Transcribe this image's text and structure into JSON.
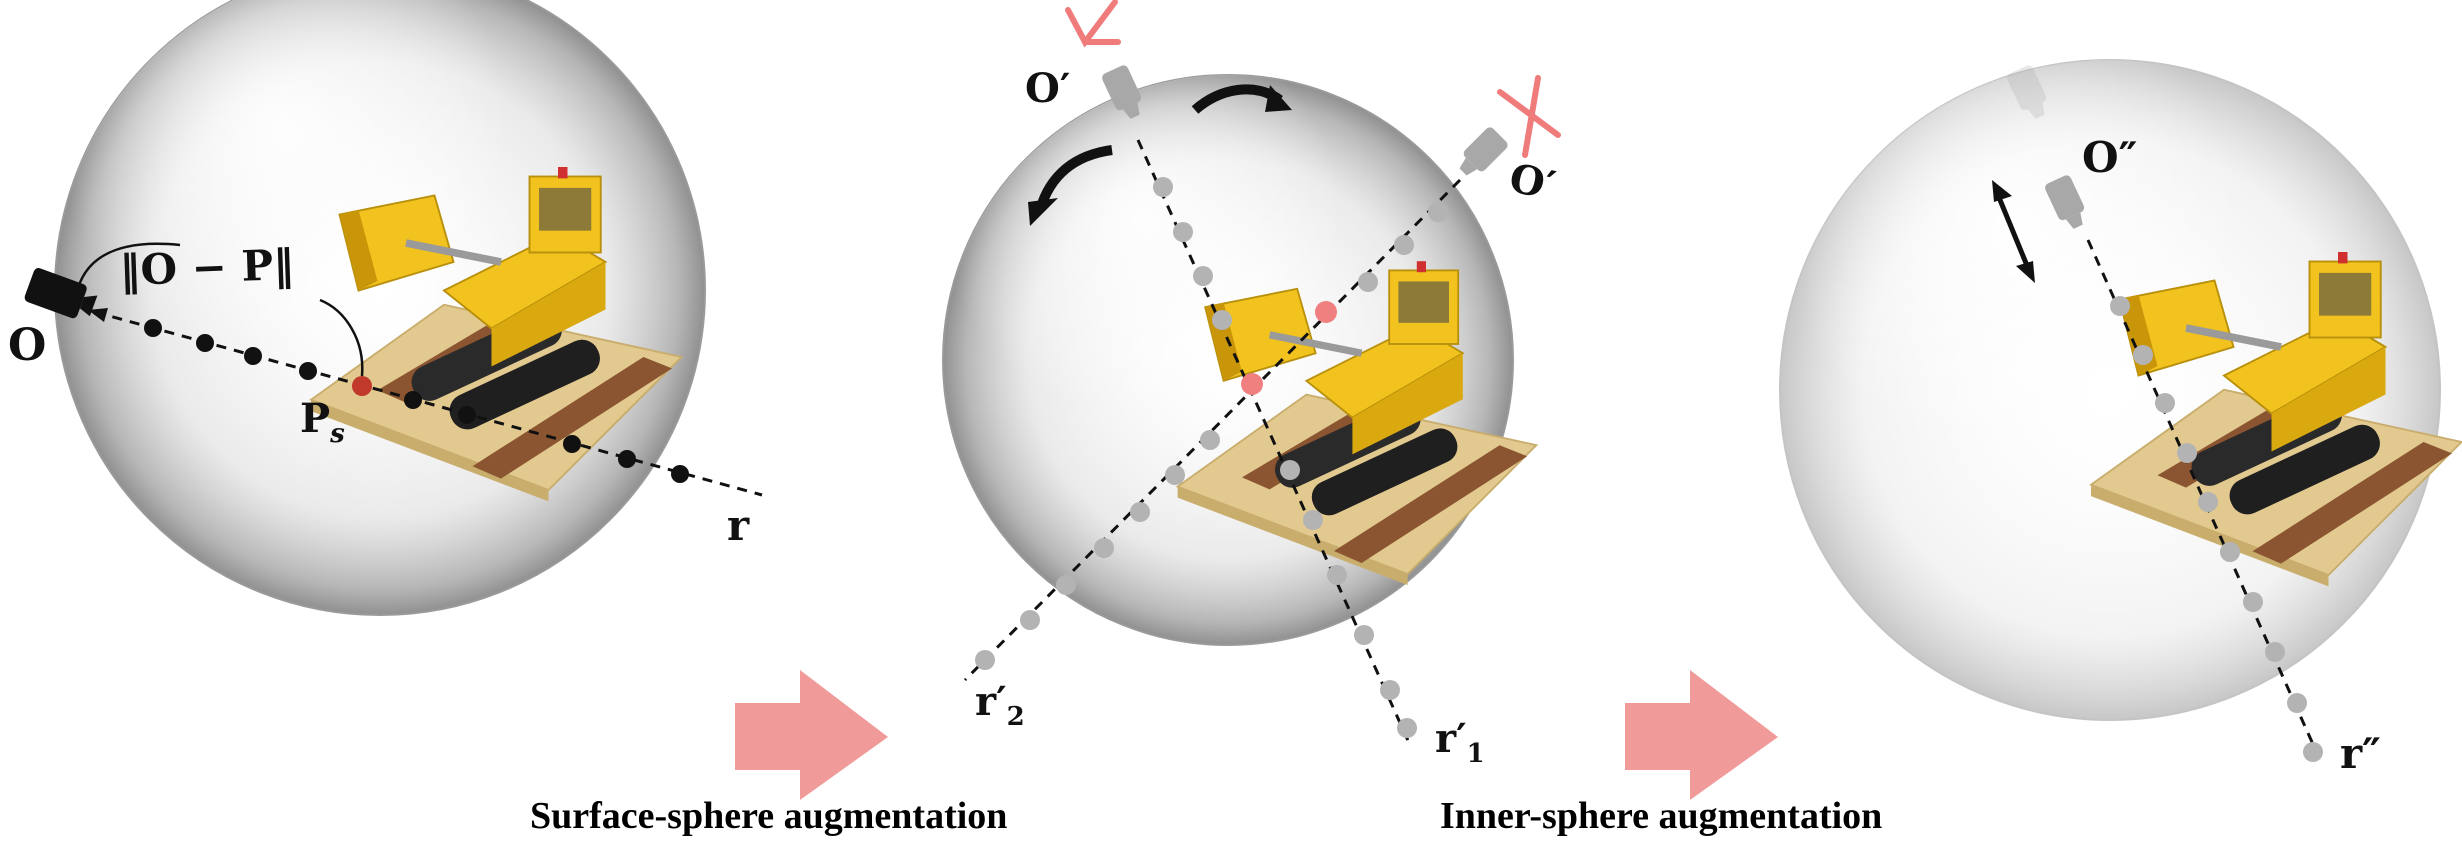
{
  "panels": {
    "left": {
      "camera_label": "O",
      "distance_label": "‖O − P‖",
      "surface_point_label": "P",
      "surface_point_subscript": "s",
      "ray_label": "r"
    },
    "middle": {
      "camera_a_label": "O′",
      "camera_a_mark": "check",
      "camera_b_label": "O′",
      "camera_b_mark": "cross",
      "ray_1_label": "r′",
      "ray_1_subscript": "1",
      "ray_2_label": "r′",
      "ray_2_subscript": "2"
    },
    "right": {
      "camera_label": "O″",
      "ray_label": "r″"
    }
  },
  "captions": {
    "surface": "Surface-sphere augmentation",
    "inner": "Inner-sphere augmentation"
  },
  "colors": {
    "arrow": "#f19a9a",
    "mark": "#ef7b7b",
    "sample_red": "#c0392b",
    "sample_pink": "#f08080",
    "sample_gray": "#b3b3b3",
    "camera_gray": "#a8a8a8",
    "toy_yellow": "#f2c31e",
    "plate_tan": "#e2c98f",
    "rail_brown": "#8a5530"
  }
}
